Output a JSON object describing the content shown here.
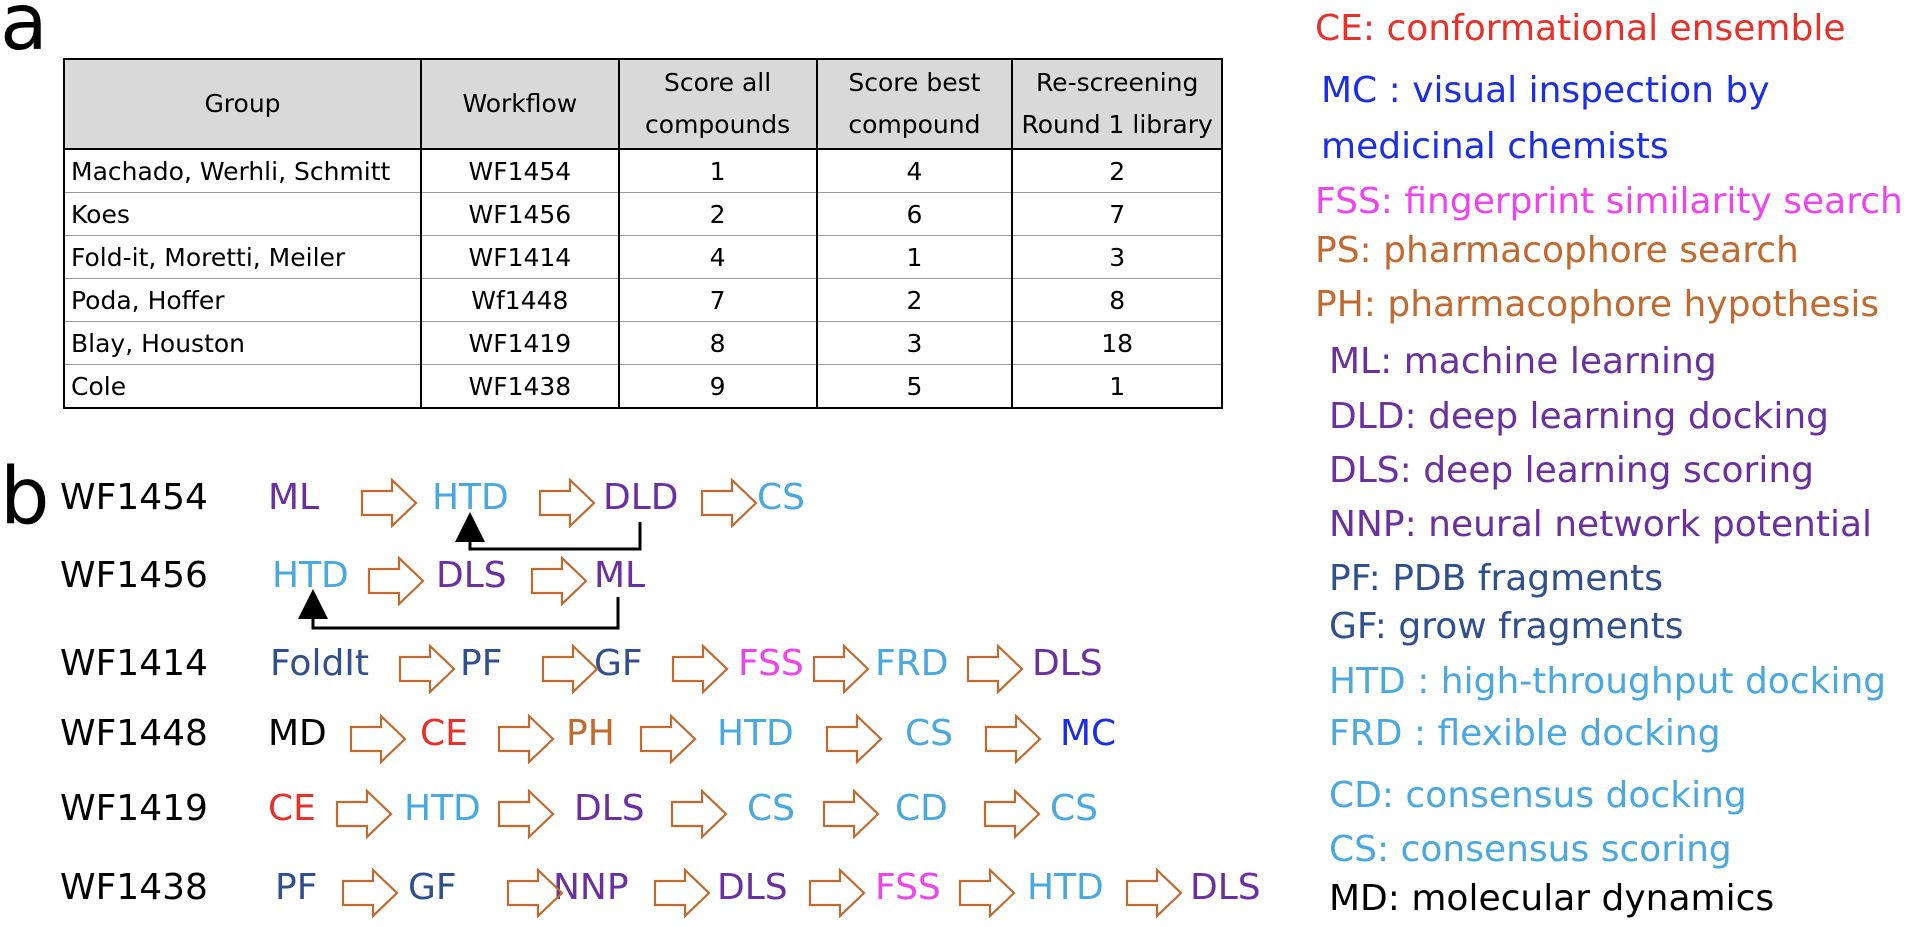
{
  "panel_labels": {
    "a": "a",
    "b": "b"
  },
  "table": {
    "headers": [
      "Group",
      "Workflow",
      "Score all compounds",
      "Score best compound",
      "Re-screening Round 1 library"
    ],
    "header_lines": [
      [
        "Group"
      ],
      [
        "Workflow"
      ],
      [
        "Score all",
        "compounds"
      ],
      [
        "Score best",
        "compound"
      ],
      [
        "Re-screening",
        "Round 1 library"
      ]
    ],
    "rows": [
      [
        "Machado, Werhli, Schmitt",
        "WF1454",
        "1",
        "4",
        "2"
      ],
      [
        "Koes",
        "WF1456",
        "2",
        "6",
        "7"
      ],
      [
        "Fold-it, Moretti, Meiler",
        "WF1414",
        "4",
        "1",
        "3"
      ],
      [
        "Poda, Hoffer",
        "Wf1448",
        "7",
        "2",
        "8"
      ],
      [
        "Blay, Houston",
        "WF1419",
        "8",
        "3",
        "18"
      ],
      [
        "Cole",
        "WF1438",
        "9",
        "5",
        "1"
      ]
    ]
  },
  "colors": {
    "CE": "#e8302a",
    "MC": "#1a2ee8",
    "FSS": "#ee44ee",
    "PS": "#c06a30",
    "PH": "#c06a30",
    "ML": "#6a2fa0",
    "DLD": "#6a2fa0",
    "DLS": "#6a2fa0",
    "NNP": "#6a2fa0",
    "PF": "#2f4f8f",
    "GF": "#2f4f8f",
    "FoldIt": "#2f4f8f",
    "HTD": "#4aa8e0",
    "FRD": "#4aa8e0",
    "CD": "#4aa8e0",
    "CS": "#4aa8e0",
    "MD": "#000000",
    "arrow": "#c06a30"
  },
  "workflows": [
    {
      "id": "WF1454",
      "steps": [
        "ML",
        "HTD",
        "DLD",
        "CS"
      ]
    },
    {
      "id": "WF1456",
      "steps": [
        "HTD",
        "DLS",
        "ML"
      ]
    },
    {
      "id": "WF1414",
      "steps": [
        "FoldIt",
        "PF",
        "GF",
        "FSS",
        "FRD",
        "DLS"
      ]
    },
    {
      "id": "WF1448",
      "steps": [
        "MD",
        "CE",
        "PH",
        "HTD",
        "CS",
        "MC"
      ]
    },
    {
      "id": "WF1419",
      "steps": [
        "CE",
        "HTD",
        "DLS",
        "CS",
        "CD",
        "CS"
      ]
    },
    {
      "id": "WF1438",
      "steps": [
        "PF",
        "GF",
        "NNP",
        "DLS",
        "FSS",
        "HTD",
        "DLS"
      ]
    }
  ],
  "legend": [
    {
      "abbr": "CE",
      "text": "CE: conformational ensemble"
    },
    {
      "abbr": "MC",
      "text": "MC : visual inspection by"
    },
    {
      "abbr": "MC",
      "text": "medicinal chemists"
    },
    {
      "abbr": "FSS",
      "text": "FSS: fingerprint similarity search"
    },
    {
      "abbr": "PS",
      "text": "PS: pharmacophore search"
    },
    {
      "abbr": "PH",
      "text": "PH: pharmacophore hypothesis"
    },
    {
      "abbr": "ML",
      "text": "ML: machine learning"
    },
    {
      "abbr": "DLD",
      "text": "DLD: deep learning docking"
    },
    {
      "abbr": "DLS",
      "text": "DLS: deep learning scoring"
    },
    {
      "abbr": "NNP",
      "text": "NNP: neural network potential"
    },
    {
      "abbr": "PF",
      "text": "PF: PDB fragments"
    },
    {
      "abbr": "GF",
      "text": "GF: grow fragments"
    },
    {
      "abbr": "HTD",
      "text": "HTD : high-throughput docking"
    },
    {
      "abbr": "FRD",
      "text": "FRD : flexible docking"
    },
    {
      "abbr": "CD",
      "text": "CD: consensus docking"
    },
    {
      "abbr": "CS",
      "text": "CS: consensus scoring"
    },
    {
      "abbr": "MD",
      "text": "MD: molecular dynamics"
    }
  ]
}
